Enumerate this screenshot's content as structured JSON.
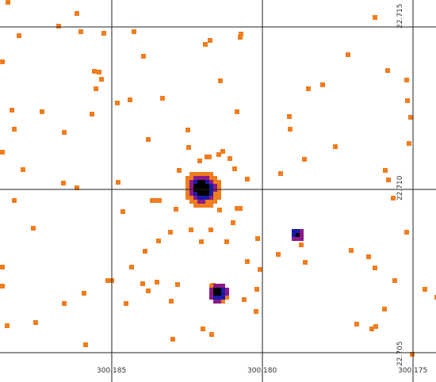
{
  "grid_color": "#222222",
  "pixel_colors": {
    "orange": "#f07d1e",
    "purple": "#8a1a8a",
    "blue": "#1a1aa8",
    "black": "#000000"
  },
  "ra_labels": {
    "left": "300.185",
    "mid": "300.180",
    "right": "300.175"
  },
  "dec_labels": {
    "top": "22.715",
    "mid": "22.710",
    "bottom": "22.705"
  }
}
